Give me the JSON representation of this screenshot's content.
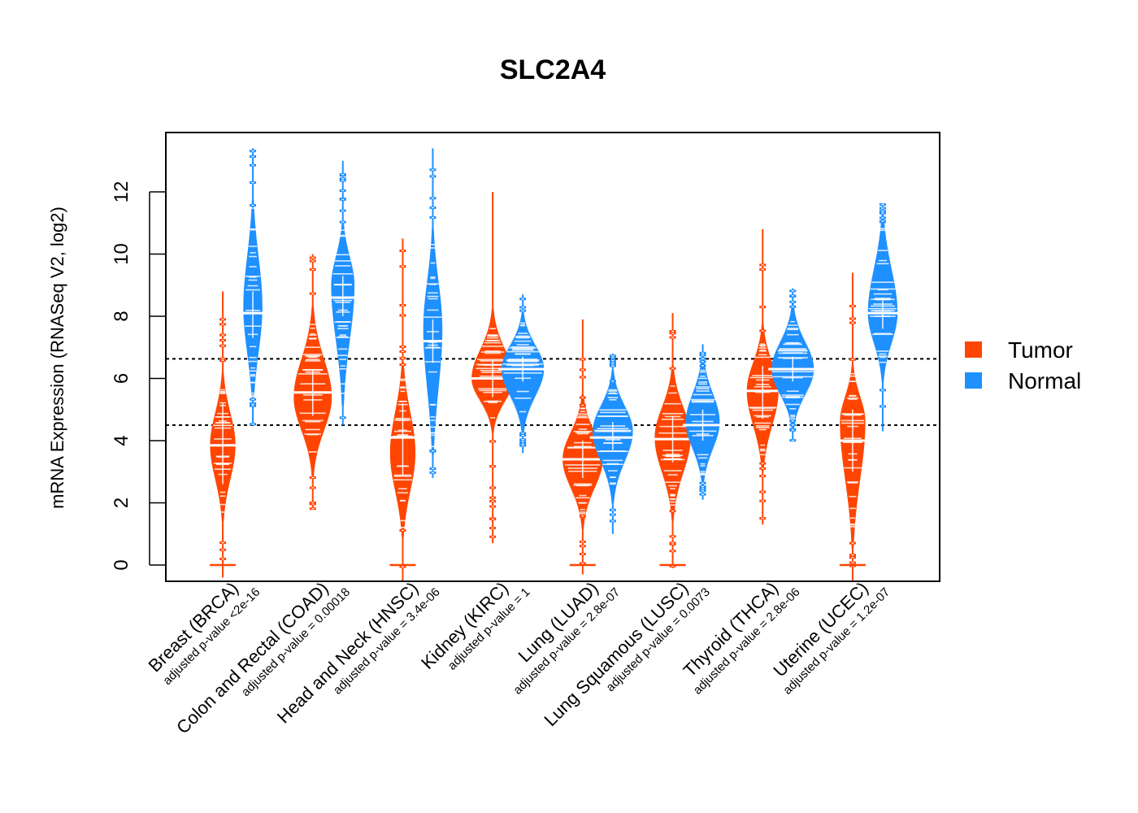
{
  "chart_data": {
    "type": "violin",
    "title": "SLC2A4",
    "xlabel": "",
    "ylabel": "mRNA Expression (RNASeq V2, log2)",
    "ylim": [
      -0.5,
      13.9
    ],
    "yticks": [
      0,
      2,
      4,
      6,
      8,
      10,
      12
    ],
    "grid": false,
    "reference_lines": [
      6.63,
      4.5
    ],
    "legend": {
      "placement": "right",
      "entries": [
        {
          "label": "Tumor",
          "color": "#FF4500"
        },
        {
          "label": "Normal",
          "color": "#1E90FF"
        }
      ]
    },
    "categories": [
      {
        "name": "Breast (BRCA)",
        "pvalue": "adjusted p-value <2e-16"
      },
      {
        "name": "Colon and Rectal (COAD)",
        "pvalue": "adjusted p-value = 0.00018"
      },
      {
        "name": "Head and Neck (HNSC)",
        "pvalue": "adjusted p-value = 3.4e-06"
      },
      {
        "name": "Kidney (KIRC)",
        "pvalue": "adjusted p-value = 1"
      },
      {
        "name": "Lung (LUAD)",
        "pvalue": "adjusted p-value = 2.8e-07"
      },
      {
        "name": "Lung Squamous (LUSC)",
        "pvalue": "adjusted p-value = 0.0073"
      },
      {
        "name": "Thyroid (THCA)",
        "pvalue": "adjusted p-value = 2.8e-06"
      },
      {
        "name": "Uterine (UCEC)",
        "pvalue": "adjusted p-value = 1.2e-07"
      }
    ],
    "series": [
      {
        "name": "Tumor",
        "color": "#FF4500",
        "distributions": [
          {
            "min": -0.4,
            "max": 8.8,
            "median": 3.85,
            "q1": 2.6,
            "q3": 5.2,
            "mode": 3.85,
            "dense_range": [
              1.7,
              5.9
            ],
            "width": 0.6
          },
          {
            "min": 1.8,
            "max": 10.0,
            "median": 5.55,
            "q1": 4.8,
            "q3": 6.3,
            "mode": 5.4,
            "dense_range": [
              3.3,
              7.8
            ],
            "width": 0.9
          },
          {
            "min": -0.5,
            "max": 10.5,
            "median": 4.1,
            "q1": 2.9,
            "q3": 5.2,
            "mode": 3.6,
            "dense_range": [
              1.2,
              6.2
            ],
            "width": 0.6
          },
          {
            "min": 0.7,
            "max": 12.0,
            "median": 6.0,
            "q1": 5.4,
            "q3": 6.6,
            "mode": 6.0,
            "dense_range": [
              4.6,
              7.8
            ],
            "width": 1.0
          },
          {
            "min": -0.3,
            "max": 7.9,
            "median": 3.4,
            "q1": 2.8,
            "q3": 4.0,
            "mode": 3.4,
            "dense_range": [
              1.6,
              5.1
            ],
            "width": 0.95
          },
          {
            "min": -0.1,
            "max": 8.1,
            "median": 4.05,
            "q1": 3.3,
            "q3": 4.8,
            "mode": 4.1,
            "dense_range": [
              1.9,
              6.0
            ],
            "width": 0.85
          },
          {
            "min": 1.3,
            "max": 10.8,
            "median": 5.6,
            "q1": 4.7,
            "q3": 6.4,
            "mode": 5.6,
            "dense_range": [
              3.4,
              7.4
            ],
            "width": 0.75
          },
          {
            "min": -0.5,
            "max": 9.4,
            "median": 4.0,
            "q1": 3.0,
            "q3": 5.0,
            "mode": 4.6,
            "dense_range": [
              1.0,
              6.2
            ],
            "width": 0.6
          }
        ]
      },
      {
        "name": "Normal",
        "color": "#1E90FF",
        "distributions": [
          {
            "min": 4.5,
            "max": 13.4,
            "median": 8.1,
            "q1": 7.3,
            "q3": 8.8,
            "mode": 8.3,
            "dense_range": [
              5.4,
              11.5
            ],
            "width": 0.45
          },
          {
            "min": 4.5,
            "max": 13.0,
            "median": 8.6,
            "q1": 8.0,
            "q3": 9.3,
            "mode": 9.0,
            "dense_range": [
              5.5,
              10.8
            ],
            "width": 0.55
          },
          {
            "min": 2.8,
            "max": 13.4,
            "median": 7.2,
            "q1": 6.5,
            "q3": 7.9,
            "mode": 7.6,
            "dense_range": [
              3.8,
              10.6
            ],
            "width": 0.45
          },
          {
            "min": 3.6,
            "max": 8.7,
            "median": 6.3,
            "q1": 5.9,
            "q3": 6.7,
            "mode": 6.3,
            "dense_range": [
              4.6,
              7.8
            ],
            "width": 1.0
          },
          {
            "min": 1.0,
            "max": 6.8,
            "median": 4.1,
            "q1": 3.7,
            "q3": 4.6,
            "mode": 4.3,
            "dense_range": [
              2.4,
              5.9
            ],
            "width": 0.95
          },
          {
            "min": 2.1,
            "max": 7.1,
            "median": 4.5,
            "q1": 4.0,
            "q3": 5.0,
            "mode": 4.6,
            "dense_range": [
              2.9,
              6.4
            ],
            "width": 0.8
          },
          {
            "min": 4.0,
            "max": 8.9,
            "median": 6.3,
            "q1": 5.9,
            "q3": 6.7,
            "mode": 6.3,
            "dense_range": [
              4.7,
              8.0
            ],
            "width": 1.0
          },
          {
            "min": 4.3,
            "max": 11.6,
            "median": 8.1,
            "q1": 7.6,
            "q3": 8.6,
            "mode": 8.1,
            "dense_range": [
              6.2,
              10.9
            ],
            "width": 0.7
          }
        ]
      }
    ]
  }
}
